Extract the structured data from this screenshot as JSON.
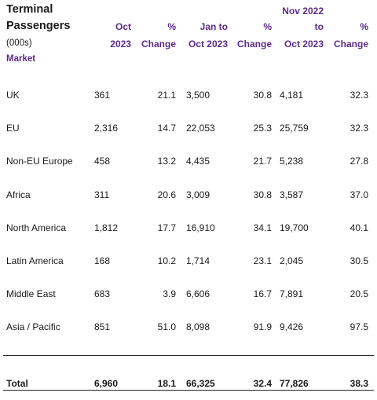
{
  "header": {
    "title_line1": "Terminal",
    "title_line2": "Passengers",
    "unit": "(000s)",
    "market_label": "Market",
    "col_oct_line1": "Oct",
    "col_oct_line2": "2023",
    "col_pct1_line1": "%",
    "col_pct1_line2": "Change",
    "col_jan_line1": "Jan to",
    "col_jan_line2": "Oct 2023",
    "col_pct2_line1": "%",
    "col_pct2_line2": "Change",
    "col_nov_line1": "Nov 2022",
    "col_nov_line2": "to",
    "col_nov_line3": "Oct 2023",
    "col_pct3_line1": "%",
    "col_pct3_line2": "Change"
  },
  "rows": [
    {
      "market": "UK",
      "oct": "361",
      "pct1": "21.1",
      "jan": "3,500",
      "pct2": "30.8",
      "nov": "4,181",
      "pct3": "32.3"
    },
    {
      "market": "EU",
      "oct": "2,316",
      "pct1": "14.7",
      "jan": "22,053",
      "pct2": "25.3",
      "nov": "25,759",
      "pct3": "32.3"
    },
    {
      "market": "Non-EU Europe",
      "oct": "458",
      "pct1": "13.2",
      "jan": "4,435",
      "pct2": "21.7",
      "nov": "5,238",
      "pct3": "27.8"
    },
    {
      "market": "Africa",
      "oct": "311",
      "pct1": "20.6",
      "jan": "3,009",
      "pct2": "30.8",
      "nov": "3,587",
      "pct3": "37.0"
    },
    {
      "market": "North America",
      "oct": "1,812",
      "pct1": "17.7",
      "jan": "16,910",
      "pct2": "34.1",
      "nov": "19,700",
      "pct3": "40.1"
    },
    {
      "market": "Latin America",
      "oct": "168",
      "pct1": "10.2",
      "jan": "1,714",
      "pct2": "23.1",
      "nov": "2,045",
      "pct3": "30.5"
    },
    {
      "market": "Middle East",
      "oct": "683",
      "pct1": "3.9",
      "jan": "6,606",
      "pct2": "16.7",
      "nov": "7,891",
      "pct3": "20.5"
    },
    {
      "market": "Asia / Pacific",
      "oct": "851",
      "pct1": "51.0",
      "jan": "8,098",
      "pct2": "91.9",
      "nov": "9,426",
      "pct3": "97.5"
    }
  ],
  "total": {
    "market": "Total",
    "oct": "6,960",
    "pct1": "18.1",
    "jan": "66,325",
    "pct2": "32.4",
    "nov": "77,826",
    "pct3": "38.3"
  }
}
